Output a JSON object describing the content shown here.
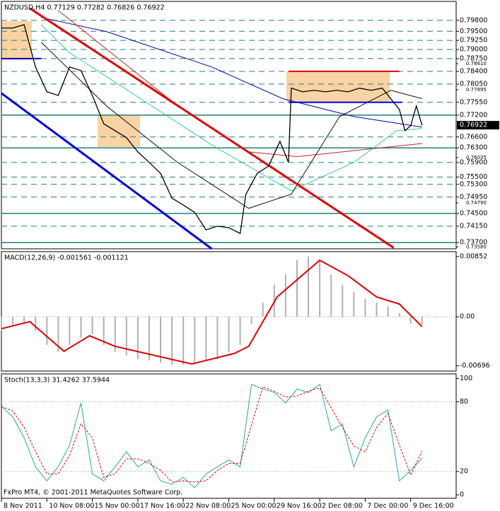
{
  "chart_data": [
    {
      "type": "line",
      "title": "NZDUSD,H4  0.77129 0.77282 0.76826 0.76922",
      "xlim": [
        0,
        160
      ],
      "ylim": [
        0.7353,
        0.8032
      ],
      "grid": true,
      "yticks": [
        {
          "value": 0.798,
          "label": "0.79800"
        },
        {
          "value": 0.795,
          "label": "0.79500"
        },
        {
          "value": 0.7925,
          "label": "0.79250"
        },
        {
          "value": 0.79,
          "label": "0.79000"
        },
        {
          "value": 0.7875,
          "label": "0.78750"
        },
        {
          "value": 0.784,
          "label": "0.78400"
        },
        {
          "value": 0.7805,
          "label": "0.78050"
        },
        {
          "value": 0.7755,
          "label": "0.77550"
        },
        {
          "value": 0.772,
          "label": "0.77200"
        },
        {
          "value": 0.766,
          "label": "0.76600"
        },
        {
          "value": 0.763,
          "label": "0.76300"
        },
        {
          "value": 0.759,
          "label": "0.75900"
        },
        {
          "value": 0.755,
          "label": "0.75500"
        },
        {
          "value": 0.753,
          "label": "0.75300"
        },
        {
          "value": 0.7495,
          "label": "0.74950"
        },
        {
          "value": 0.745,
          "label": "0.74500"
        },
        {
          "value": 0.7415,
          "label": "0.74150"
        },
        {
          "value": 0.737,
          "label": "0.73700"
        }
      ],
      "minor_yticks": [
        {
          "value": 0.7861,
          "label": "0.78610"
        },
        {
          "value": 0.77895,
          "label": "0.77895"
        },
        {
          "value": 0.76035,
          "label": "0.76035"
        },
        {
          "value": 0.7479,
          "label": "0.74790"
        },
        {
          "value": 0.7358,
          "label": "0.73580"
        }
      ],
      "last_price": {
        "value": 0.76922,
        "label": "0.76922"
      },
      "levels": [
        {
          "value": 0.772,
          "color": "#1f7f7f"
        },
        {
          "value": 0.763,
          "color": "#1f7f7f"
        },
        {
          "value": 0.745,
          "color": "#1f7f7f"
        },
        {
          "value": 0.737,
          "color": "#1f7f7f"
        },
        {
          "value": 0.7875,
          "color": "#0000cc",
          "x": [
            0,
            14
          ]
        },
        {
          "value": 0.7755,
          "color": "#0000ff",
          "x": [
            101,
            141
          ]
        },
        {
          "value": 0.784,
          "color": "#e00000",
          "x": [
            101,
            140
          ]
        }
      ],
      "series": [
        {
          "color": "#0000aa",
          "width": 1,
          "x": [
            14,
            37,
            74,
            99,
            124,
            148
          ],
          "values": [
            0.7988,
            0.7949,
            0.7852,
            0.7765,
            0.7716,
            0.7687
          ]
        },
        {
          "color": "#cc2222",
          "width": 1,
          "x": [
            20,
            62,
            87,
            104,
            148
          ],
          "values": [
            0.8007,
            0.7745,
            0.7619,
            0.7606,
            0.7642
          ]
        },
        {
          "color": "#33cc99",
          "width": 1,
          "x": [
            14,
            24,
            49,
            74,
            102,
            124,
            139,
            148
          ],
          "values": [
            0.7968,
            0.7891,
            0.7765,
            0.7638,
            0.7512,
            0.759,
            0.7677,
            0.7683
          ]
        },
        {
          "color": "#111111",
          "width": 1,
          "x": [
            14,
            37,
            62,
            87,
            102,
            119,
            137,
            148
          ],
          "values": [
            0.792,
            0.7745,
            0.759,
            0.7464,
            0.7503,
            0.7716,
            0.7788,
            0.7765
          ]
        },
        {
          "color": "#e00000",
          "width": 3,
          "x": [
            10,
            138
          ],
          "values": [
            0.8013,
            0.7356
          ]
        },
        {
          "color": "#0000dd",
          "width": 3,
          "x": [
            0,
            74
          ],
          "values": [
            0.778,
            0.7353
          ]
        },
        {
          "color": "#000000",
          "width": 1.3,
          "x": [
            0,
            4,
            8,
            12,
            16,
            20,
            24,
            28,
            32,
            36,
            40,
            44,
            48,
            52,
            56,
            60,
            64,
            68,
            72,
            76,
            80,
            84,
            86,
            90,
            94,
            98,
            101,
            102,
            106,
            110,
            114,
            118,
            122,
            126,
            130,
            134,
            138,
            140,
            142,
            144,
            146,
            148
          ],
          "values": [
            0.7959,
            0.7959,
            0.7968,
            0.7852,
            0.7784,
            0.7774,
            0.7852,
            0.7842,
            0.7774,
            0.7696,
            0.7677,
            0.7658,
            0.7619,
            0.759,
            0.756,
            0.7492,
            0.7473,
            0.7453,
            0.7405,
            0.7415,
            0.7411,
            0.7395,
            0.7502,
            0.756,
            0.758,
            0.7648,
            0.759,
            0.7794,
            0.7784,
            0.7788,
            0.7784,
            0.7788,
            0.7784,
            0.7794,
            0.7788,
            0.7794,
            0.7755,
            0.7736,
            0.7677,
            0.7691,
            0.7745,
            0.76922
          ]
        }
      ]
    },
    {
      "type": "line",
      "title": "MACD(12,26,9) -0.001561 -0.001121",
      "xlim": [
        0,
        160
      ],
      "ylim": [
        -0.0077,
        0.00922
      ],
      "grid": false,
      "yticks": [
        {
          "value": 0.00852,
          "label": "0.00852"
        },
        {
          "value": 0,
          "label": "0.00"
        },
        {
          "value": -0.00696,
          "label": "-0.00696"
        }
      ],
      "levels": [
        {
          "value": 0,
          "color": "#999999",
          "dash": "1,2"
        }
      ],
      "series": [
        {
          "kind": "histogram",
          "color": "#b0b0b0",
          "width": 1,
          "x": [
            0,
            4,
            8,
            12,
            16,
            20,
            24,
            28,
            32,
            36,
            40,
            44,
            48,
            52,
            56,
            60,
            64,
            68,
            72,
            76,
            80,
            84,
            88,
            92,
            96,
            100,
            104,
            108,
            112,
            116,
            120,
            124,
            128,
            132,
            136,
            140,
            144,
            148
          ],
          "values": [
            -0.002,
            -0.0012,
            -0.0008,
            -0.002,
            -0.004,
            -0.005,
            -0.004,
            -0.003,
            -0.0025,
            -0.004,
            -0.005,
            -0.0055,
            -0.006,
            -0.0062,
            -0.0065,
            -0.0068,
            -0.0068,
            -0.0066,
            -0.0062,
            -0.006,
            -0.005,
            -0.004,
            -0.001,
            0.002,
            0.0045,
            0.006,
            0.008,
            0.0085,
            0.008,
            0.006,
            0.0045,
            0.0035,
            0.0025,
            0.002,
            0.0015,
            0.0005,
            -0.001,
            -0.0011
          ]
        },
        {
          "color": "#e00000",
          "width": 2,
          "x": [
            0,
            10,
            22,
            31,
            40,
            67,
            82,
            87,
            97,
            112,
            122,
            132,
            140,
            148
          ],
          "values": [
            -0.0017,
            -0.0007,
            -0.0049,
            -0.0027,
            -0.0042,
            -0.0067,
            -0.0052,
            -0.0042,
            0.0028,
            0.008,
            0.0058,
            0.0028,
            0.0018,
            -0.0014
          ]
        }
      ]
    },
    {
      "type": "line",
      "title": "Stoch(13,3,3) 31.4262 37.5944",
      "xlim": [
        0,
        160
      ],
      "ylim": [
        -3,
        104
      ],
      "grid": false,
      "yticks": [
        100,
        80,
        20,
        0
      ],
      "levels": [
        {
          "value": 80,
          "color": "#999999",
          "dash": "1,2"
        },
        {
          "value": 20,
          "color": "#999999",
          "dash": "1,2"
        }
      ],
      "series": [
        {
          "color": "#2aa6a6",
          "width": 1,
          "x": [
            0,
            4,
            8,
            12,
            16,
            20,
            24,
            28,
            32,
            36,
            40,
            44,
            48,
            52,
            56,
            60,
            64,
            68,
            72,
            76,
            80,
            84,
            88,
            92,
            96,
            100,
            104,
            108,
            112,
            116,
            120,
            124,
            128,
            132,
            136,
            140,
            144,
            148
          ],
          "values": [
            76,
            67,
            49,
            24,
            12,
            24,
            43,
            79,
            18,
            12,
            24,
            37,
            24,
            30,
            12,
            9,
            15,
            6,
            18,
            24,
            30,
            24,
            95,
            91,
            88,
            79,
            91,
            88,
            95,
            55,
            61,
            24,
            49,
            67,
            73,
            12,
            21,
            31.4262
          ]
        },
        {
          "color": "#e00000",
          "width": 1,
          "dash": "3,2",
          "x": [
            0,
            4,
            8,
            12,
            16,
            20,
            24,
            28,
            32,
            36,
            40,
            44,
            48,
            52,
            56,
            60,
            64,
            68,
            72,
            76,
            80,
            84,
            88,
            92,
            96,
            100,
            104,
            108,
            112,
            116,
            120,
            124,
            128,
            132,
            136,
            140,
            144,
            148
          ],
          "values": [
            76,
            72,
            58,
            37,
            18,
            18,
            34,
            61,
            49,
            15,
            18,
            31,
            31,
            27,
            21,
            11,
            12,
            11,
            12,
            21,
            27,
            27,
            60,
            93,
            89,
            84,
            85,
            89,
            92,
            75,
            58,
            42,
            37,
            58,
            70,
            43,
            17,
            37.5944
          ]
        }
      ],
      "xticks": [
        {
          "value": 0,
          "label": "8 Nov 2011"
        },
        {
          "value": 16,
          "label": "10 Nov 08:00"
        },
        {
          "value": 32,
          "label": "15 Nov 00:00"
        },
        {
          "value": 48,
          "label": "17 Nov 16:00"
        },
        {
          "value": 64,
          "label": "22 Nov 08:00"
        },
        {
          "value": 80,
          "label": "25 Nov 00:00"
        },
        {
          "value": 96,
          "label": "29 Nov 16:00"
        },
        {
          "value": 112,
          "label": "2 Dec 08:00"
        },
        {
          "value": 128,
          "label": "7 Dec 00:00"
        },
        {
          "value": 144,
          "label": "9 Dec 16:00"
        }
      ]
    }
  ],
  "footer": "FxPro MT4, © 2001-2011 MetaQuotes Software Corp."
}
